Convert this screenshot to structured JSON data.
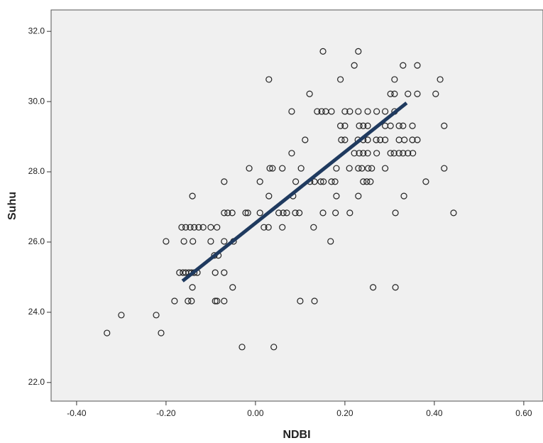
{
  "chart_data": {
    "type": "scatter",
    "x_label": "NDBI",
    "y_label": "Suhu",
    "xlim": [
      -0.457,
      0.643
    ],
    "ylim": [
      21.47,
      32.61
    ],
    "xticks": [
      {
        "value": -0.4,
        "label": "-0.40"
      },
      {
        "value": -0.2,
        "label": "-0.20"
      },
      {
        "value": 0,
        "label": "0.00"
      },
      {
        "value": 0.2,
        "label": "0.20"
      },
      {
        "value": 0.4,
        "label": "0.40"
      },
      {
        "value": 0.6,
        "label": "0.60"
      }
    ],
    "yticks": [
      {
        "value": 22,
        "label": "22.0"
      },
      {
        "value": 24,
        "label": "24.0"
      },
      {
        "value": 26,
        "label": "26.0"
      },
      {
        "value": 28,
        "label": "28.0"
      },
      {
        "value": 30,
        "label": "30.0"
      },
      {
        "value": 32,
        "label": "32.0"
      }
    ],
    "grid": false,
    "point_color": "#222222",
    "line_color": "#1f3a5f",
    "points": {
      "x": [
        -0.332,
        -0.211,
        -0.3,
        -0.222,
        -0.03,
        0.041,
        -0.181,
        -0.151,
        -0.143,
        -0.09,
        -0.086,
        -0.07,
        0.1,
        0.132,
        -0.141,
        -0.051,
        0.263,
        0.313,
        -0.17,
        -0.162,
        -0.156,
        -0.149,
        -0.143,
        -0.137,
        -0.13,
        -0.09,
        -0.07,
        -0.092,
        -0.083,
        -0.2,
        -0.16,
        -0.14,
        -0.1,
        -0.07,
        -0.049,
        0.168,
        -0.165,
        -0.156,
        -0.146,
        -0.137,
        -0.127,
        -0.117,
        -0.1,
        -0.086,
        0.019,
        0.029,
        0.06,
        0.13,
        -0.07,
        -0.062,
        -0.052,
        -0.022,
        -0.017,
        0.01,
        0.052,
        0.062,
        0.07,
        0.089,
        0.098,
        0.151,
        0.179,
        0.211,
        0.313,
        0.443,
        -0.141,
        0.03,
        0.084,
        0.181,
        0.23,
        0.332,
        -0.07,
        0.01,
        0.09,
        0.122,
        0.132,
        0.146,
        0.152,
        0.17,
        0.178,
        0.241,
        0.249,
        0.257,
        0.381,
        -0.014,
        0.032,
        0.038,
        0.06,
        0.102,
        0.181,
        0.21,
        0.23,
        0.238,
        0.252,
        0.26,
        0.29,
        0.422,
        0.081,
        0.221,
        0.232,
        0.241,
        0.251,
        0.271,
        0.302,
        0.31,
        0.321,
        0.33,
        0.341,
        0.352,
        0.111,
        0.192,
        0.2,
        0.229,
        0.241,
        0.251,
        0.27,
        0.279,
        0.29,
        0.321,
        0.333,
        0.351,
        0.362,
        0.19,
        0.2,
        0.232,
        0.241,
        0.251,
        0.29,
        0.302,
        0.321,
        0.33,
        0.351,
        0.422,
        0.081,
        0.138,
        0.148,
        0.157,
        0.17,
        0.2,
        0.211,
        0.23,
        0.251,
        0.271,
        0.29,
        0.311,
        0.121,
        0.302,
        0.311,
        0.341,
        0.362,
        0.403,
        0.03,
        0.19,
        0.311,
        0.413,
        0.221,
        0.33,
        0.362,
        0.151,
        0.23
      ],
      "y": [
        23.41,
        23.41,
        23.92,
        23.92,
        23.01,
        23.01,
        24.32,
        24.32,
        24.32,
        24.32,
        24.32,
        24.32,
        24.32,
        24.32,
        24.71,
        24.71,
        24.71,
        24.71,
        25.13,
        25.13,
        25.13,
        25.13,
        25.13,
        25.13,
        25.13,
        25.13,
        25.13,
        25.62,
        25.62,
        26.02,
        26.02,
        26.02,
        26.02,
        26.02,
        26.02,
        26.02,
        26.42,
        26.42,
        26.42,
        26.42,
        26.42,
        26.42,
        26.42,
        26.42,
        26.42,
        26.42,
        26.42,
        26.42,
        26.83,
        26.83,
        26.83,
        26.83,
        26.83,
        26.83,
        26.83,
        26.83,
        26.83,
        26.83,
        26.83,
        26.83,
        26.83,
        26.83,
        26.83,
        26.83,
        27.31,
        27.31,
        27.31,
        27.31,
        27.31,
        27.31,
        27.72,
        27.72,
        27.72,
        27.72,
        27.72,
        27.72,
        27.72,
        27.72,
        27.72,
        27.72,
        27.72,
        27.72,
        27.72,
        28.1,
        28.1,
        28.1,
        28.1,
        28.1,
        28.1,
        28.1,
        28.1,
        28.1,
        28.1,
        28.1,
        28.1,
        28.1,
        28.53,
        28.53,
        28.53,
        28.53,
        28.53,
        28.53,
        28.53,
        28.53,
        28.53,
        28.53,
        28.53,
        28.53,
        28.91,
        28.91,
        28.91,
        28.91,
        28.91,
        28.91,
        28.91,
        28.91,
        28.91,
        28.91,
        28.91,
        28.91,
        28.91,
        29.31,
        29.31,
        29.31,
        29.31,
        29.31,
        29.31,
        29.31,
        29.31,
        29.31,
        29.31,
        29.31,
        29.72,
        29.72,
        29.72,
        29.72,
        29.72,
        29.72,
        29.72,
        29.72,
        29.72,
        29.72,
        29.72,
        29.72,
        30.22,
        30.22,
        30.22,
        30.22,
        30.22,
        30.22,
        30.63,
        30.63,
        30.63,
        30.63,
        31.03,
        31.03,
        31.03,
        31.43,
        31.43
      ]
    },
    "fit_line": {
      "x": [
        -0.163,
        0.338
      ],
      "y": [
        24.89,
        29.96
      ]
    }
  }
}
